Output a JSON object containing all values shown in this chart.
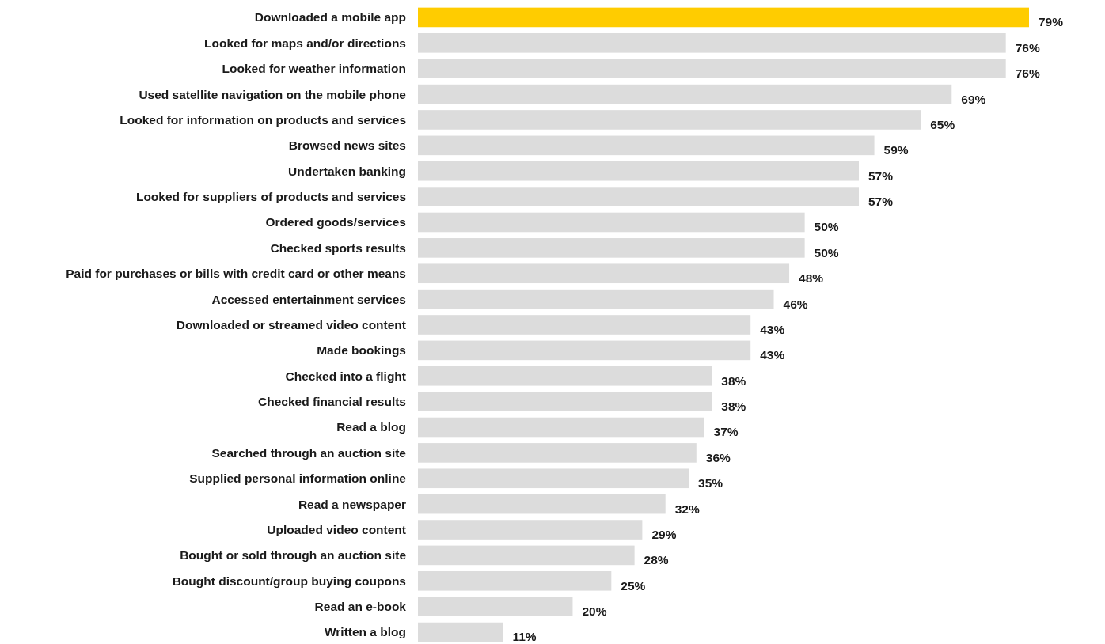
{
  "chart_data": {
    "type": "bar",
    "orientation": "horizontal",
    "categories": [
      "Downloaded a mobile app",
      "Looked for maps and/or directions",
      "Looked for weather information",
      "Used satellite navigation on the mobile phone",
      "Looked for information on products and services",
      "Browsed news sites",
      "Undertaken banking",
      "Looked for suppliers of products and services",
      "Ordered goods/services",
      "Checked sports results",
      "Paid for purchases or bills with credit card or other means",
      "Accessed entertainment services",
      "Downloaded or streamed video content",
      "Made bookings",
      "Checked into a flight",
      "Checked financial results",
      "Read a blog",
      "Searched through an auction site",
      "Supplied personal information online",
      "Read a newspaper",
      "Uploaded video content",
      "Bought or sold through an auction site",
      "Bought discount/group buying coupons",
      "Read an e-book",
      "Written a blog"
    ],
    "values": [
      79,
      76,
      76,
      69,
      65,
      59,
      57,
      57,
      50,
      50,
      48,
      46,
      43,
      43,
      38,
      38,
      37,
      36,
      35,
      32,
      29,
      28,
      25,
      20,
      11
    ],
    "value_labels": [
      "79%",
      "76%",
      "76%",
      "69%",
      "65%",
      "59%",
      "57%",
      "57%",
      "50%",
      "50%",
      "48%",
      "46%",
      "43%",
      "43%",
      "38%",
      "38%",
      "37%",
      "36%",
      "35%",
      "32%",
      "29%",
      "28%",
      "25%",
      "20%",
      "11%"
    ],
    "colors": [
      "#ffcc00",
      "#dcdcdc",
      "#dcdcdc",
      "#dcdcdc",
      "#dcdcdc",
      "#dcdcdc",
      "#dcdcdc",
      "#dcdcdc",
      "#dcdcdc",
      "#dcdcdc",
      "#dcdcdc",
      "#dcdcdc",
      "#dcdcdc",
      "#dcdcdc",
      "#dcdcdc",
      "#dcdcdc",
      "#dcdcdc",
      "#dcdcdc",
      "#dcdcdc",
      "#dcdcdc",
      "#dcdcdc",
      "#dcdcdc",
      "#dcdcdc",
      "#dcdcdc",
      "#dcdcdc"
    ]
  }
}
